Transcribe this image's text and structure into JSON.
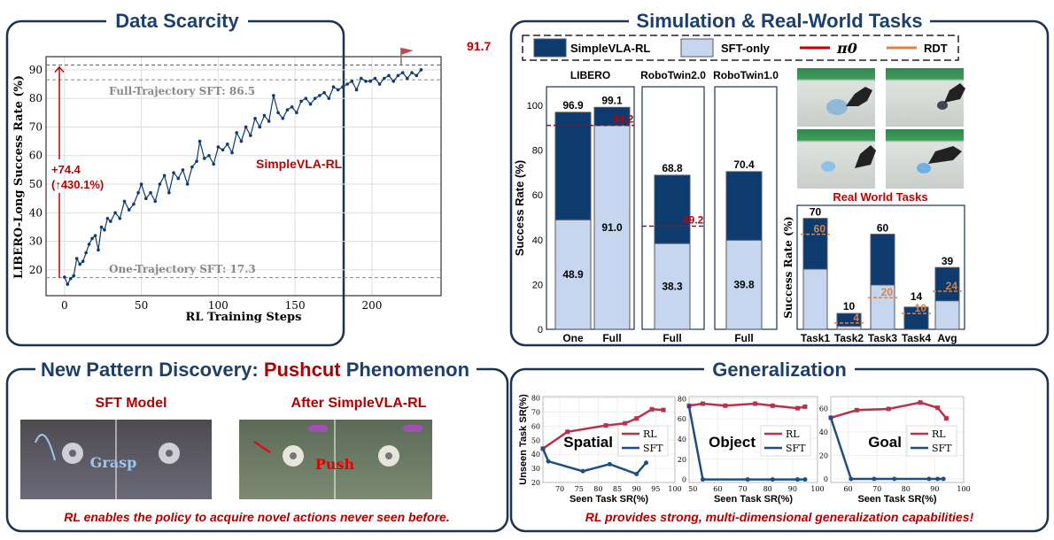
{
  "panels": {
    "data_scarcity": {
      "title": "Data Scarcity"
    },
    "sim_real": {
      "title": "Simulation & Real-World Tasks",
      "legend": [
        {
          "label": "SimpleVLA-RL",
          "color": "#0d3b6e"
        },
        {
          "label": "SFT-only",
          "color": "#c6d6ef"
        },
        {
          "label": "π0",
          "color": "#c00000"
        },
        {
          "label": "RDT",
          "color": "#d9824a"
        }
      ],
      "real_world_label": "Real World Tasks"
    },
    "pushcut": {
      "title_a": "New Pattern Discovery: ",
      "title_b": "Pushcut",
      "title_c": " Phenomenon",
      "sft_label": "SFT Model",
      "rl_label": "After SimpleVLA-RL",
      "grasp_label": "Grasp",
      "push_label": "Push",
      "caption": "RL enables the policy to acquire novel actions never seen before."
    },
    "generalization": {
      "title": "Generalization",
      "caption": "RL provides strong, multi-dimensional generalization capabilities!"
    }
  },
  "chart_data": [
    {
      "type": "line",
      "xlabel": "RL Training Steps",
      "ylabel": "LIBERO-Long Success Rate (%)",
      "xlim": [
        -12,
        245
      ],
      "ylim": [
        11,
        94.6
      ],
      "xticks": [
        0,
        50,
        100,
        150,
        200
      ],
      "yticks": [
        20,
        30,
        40,
        50,
        60,
        70,
        80,
        90
      ],
      "grid": true,
      "series": [
        {
          "name": "SimpleVLA-RL",
          "x": [
            0,
            2,
            4,
            6,
            8,
            10,
            12,
            14,
            16,
            18,
            20,
            22,
            24,
            26,
            28,
            30,
            33,
            36,
            39,
            42,
            45,
            48,
            50,
            53,
            56,
            59,
            62,
            65,
            68,
            71,
            74,
            77,
            80,
            83,
            86,
            88,
            91,
            94,
            97,
            100,
            103,
            106,
            109,
            112,
            115,
            118,
            121,
            124,
            127,
            130,
            133,
            136,
            139,
            142,
            145,
            148,
            151,
            154,
            157,
            160,
            163,
            166,
            169,
            172,
            175,
            178,
            181,
            184,
            187,
            190,
            193,
            196,
            199,
            202,
            205,
            208,
            211,
            214,
            217,
            220,
            223,
            226,
            229,
            232
          ],
          "y": [
            17.5,
            15,
            17,
            18,
            24,
            22,
            23,
            26,
            29,
            31,
            32,
            27,
            35,
            34,
            38,
            37,
            40,
            38,
            44,
            41,
            43,
            47,
            50,
            45,
            47,
            44,
            50,
            53,
            47,
            54,
            52,
            55,
            50,
            56,
            58,
            65,
            59,
            60,
            57,
            63,
            62,
            64,
            61,
            68,
            65,
            70,
            67,
            73,
            70,
            74,
            72,
            81,
            75,
            73,
            76,
            77,
            75,
            79,
            80,
            78,
            80,
            81,
            82,
            80,
            84,
            83,
            84,
            85,
            86,
            83,
            87,
            86,
            86,
            87,
            85,
            87,
            88,
            86,
            88,
            89,
            87,
            89,
            88,
            90
          ]
        }
      ],
      "annotations": [
        "Full-Trajectory SFT: 86.5",
        "One-Trajectory SFT: 17.3",
        "+74.4",
        "(↑430.1%)",
        "91.7",
        "SimpleVLA-RL"
      ],
      "reference_lines": {
        "full_sft": 86.5,
        "one_sft": 17.3,
        "best": 91.7
      }
    },
    {
      "type": "bar",
      "ylabel": "Success Rate (%)",
      "ylim": [
        0,
        100
      ],
      "yticks": [
        0,
        20,
        40,
        60,
        80,
        100
      ],
      "groups": [
        {
          "title": "LIBERO",
          "bars": [
            {
              "category": "One",
              "rl": 96.9,
              "sft": 48.9,
              "rl_label": "96.9",
              "sft_label": "48.9"
            },
            {
              "category": "Full",
              "rl": 99.1,
              "sft": 91.0,
              "rl_label": "99.1",
              "sft_label": "91.0"
            }
          ],
          "pi0": 94.2,
          "pi0_label": "94.2"
        },
        {
          "title": "RoboTwin2.0",
          "bars": [
            {
              "category": "Full",
              "rl": 68.8,
              "sft": 38.3,
              "rl_label": "68.8",
              "sft_label": "38.3"
            }
          ],
          "pi0": 49.2,
          "pi0_label": "49.2"
        },
        {
          "title": "RoboTwin1.0",
          "bars": [
            {
              "category": "Full",
              "rl": 70.4,
              "sft": 39.8,
              "rl_label": "70.4",
              "sft_label": "39.8"
            }
          ]
        }
      ]
    },
    {
      "type": "bar",
      "title": "Real World Tasks",
      "ylabel": "Success Rate (%)",
      "ylim": [
        0,
        78
      ],
      "categories": [
        "Task1",
        "Task2",
        "Task3",
        "Task4",
        "Avg"
      ],
      "rl": [
        70,
        10,
        60,
        14,
        39
      ],
      "sft": [
        38,
        2,
        28,
        0,
        18
      ],
      "rdt": [
        60,
        4,
        20,
        10,
        24
      ],
      "rl_labels": [
        "70",
        "10",
        "60",
        "14",
        "39"
      ],
      "rdt_labels": [
        "60",
        "4",
        "20",
        "10",
        "24"
      ]
    },
    {
      "type": "line",
      "title": "Spatial",
      "xlabel": "Seen Task SR(%)",
      "ylabel": "Unseen Task SR(%)",
      "xlim": [
        65.6,
        100
      ],
      "ylim": [
        20,
        81
      ],
      "xticks": [
        70,
        75,
        80,
        85,
        90,
        95,
        100
      ],
      "yticks": [
        20,
        30,
        40,
        50,
        60,
        70,
        80
      ],
      "series": [
        {
          "name": "RL",
          "x": [
            65.6,
            72,
            82,
            87,
            90,
            94,
            97
          ],
          "y": [
            44,
            56,
            60.5,
            62,
            65.5,
            72,
            71.5
          ]
        },
        {
          "name": "SFT",
          "x": [
            65.6,
            67,
            76,
            83,
            90,
            92.5
          ],
          "y": [
            44,
            35,
            28,
            33,
            26,
            34
          ]
        }
      ]
    },
    {
      "type": "line",
      "title": "Object",
      "xlabel": "Seen Task SR(%)",
      "xlim": [
        48.5,
        100
      ],
      "ylim": [
        -3,
        82
      ],
      "xticks": [
        50,
        60,
        70,
        80,
        90,
        100
      ],
      "yticks": [
        0,
        20,
        40,
        60,
        80
      ],
      "series": [
        {
          "name": "RL",
          "x": [
            48.5,
            54,
            63,
            75,
            82,
            92,
            95
          ],
          "y": [
            73,
            75,
            73,
            75,
            73,
            70.5,
            72
          ]
        },
        {
          "name": "SFT",
          "x": [
            48.5,
            54,
            72,
            82,
            92,
            95
          ],
          "y": [
            72,
            0,
            0,
            0,
            0,
            0
          ]
        }
      ]
    },
    {
      "type": "line",
      "title": "Goal",
      "xlabel": "Seen Task SR(%)",
      "xlim": [
        54,
        100
      ],
      "ylim": [
        -3,
        70
      ],
      "xticks": [
        60,
        70,
        80,
        90,
        100
      ],
      "yticks": [
        0,
        20,
        40,
        60
      ],
      "series": [
        {
          "name": "RL",
          "x": [
            54,
            63,
            74,
            85,
            91,
            94
          ],
          "y": [
            52,
            58.5,
            59.5,
            65,
            60.5,
            51.5
          ]
        },
        {
          "name": "SFT",
          "x": [
            54,
            61,
            69,
            76,
            88,
            91,
            93
          ],
          "y": [
            52,
            0,
            0,
            0,
            0,
            0,
            0
          ]
        }
      ]
    }
  ]
}
